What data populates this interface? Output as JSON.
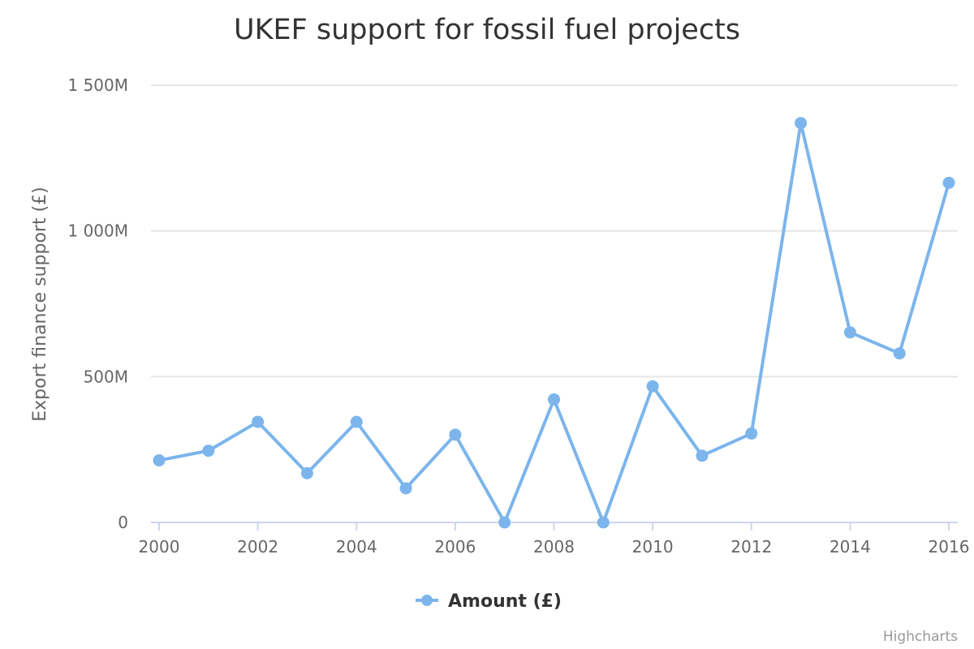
{
  "chart_data": {
    "type": "line",
    "title": "UKEF support for fossil fuel projects",
    "xlabel": "",
    "ylabel": "Export finance support (£)",
    "x": [
      2000,
      2001,
      2002,
      2003,
      2004,
      2005,
      2006,
      2007,
      2008,
      2009,
      2010,
      2011,
      2012,
      2013,
      2014,
      2015,
      2016
    ],
    "series": [
      {
        "name": "Amount (£)",
        "color": "#7cb5ec",
        "values": [
          213,
          246,
          345,
          169,
          345,
          117,
          301,
          0,
          422,
          0,
          467,
          229,
          305,
          1370,
          652,
          580,
          1165
        ]
      }
    ],
    "value_unit": "M",
    "ylim": [
      0,
      1500
    ],
    "xlim": [
      2000,
      2016
    ],
    "yticks": [
      0,
      500,
      1000,
      1500
    ],
    "ytick_labels": [
      "0",
      "500M",
      "1 000M",
      "1 500M"
    ],
    "xticks": [
      2000,
      2002,
      2004,
      2006,
      2008,
      2010,
      2012,
      2014,
      2016
    ],
    "xtick_labels": [
      "2000",
      "2002",
      "2004",
      "2006",
      "2008",
      "2010",
      "2012",
      "2014",
      "2016"
    ],
    "grid": true,
    "legend_position": "bottom-center"
  },
  "credits": "Highcharts"
}
